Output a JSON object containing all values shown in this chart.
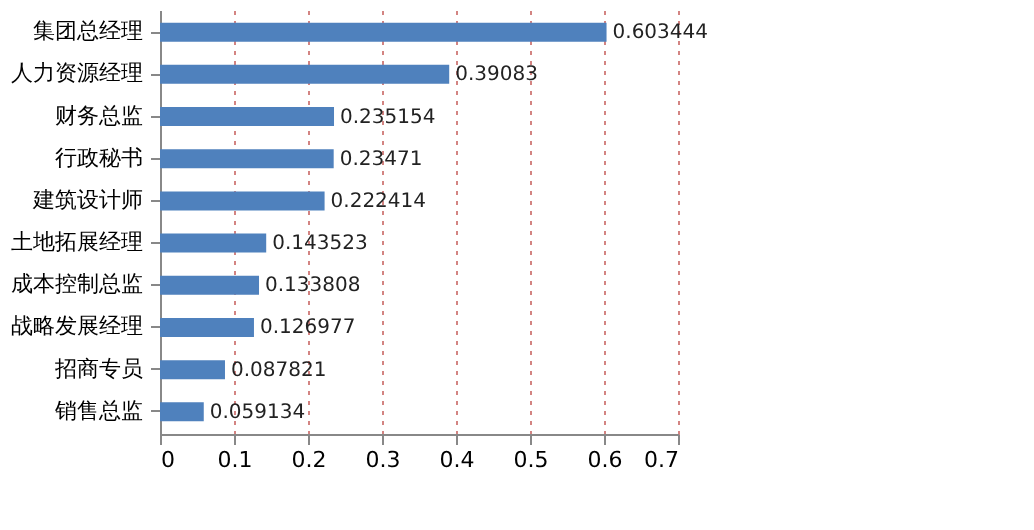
{
  "chart_data": {
    "type": "bar",
    "orientation": "horizontal",
    "categories": [
      "集团总经理",
      "人力资源经理",
      "财务总监",
      "行政秘书",
      "建筑设计师",
      "土地拓展经理",
      "成本控制总监",
      "战略发展经理",
      "招商专员",
      "销售总监"
    ],
    "values": [
      0.603444,
      0.39083,
      0.235154,
      0.23471,
      0.222414,
      0.143523,
      0.133808,
      0.126977,
      0.087821,
      0.059134
    ],
    "color": "#4f81bd",
    "data_labels": true,
    "grid": "x",
    "xlim": [
      0,
      0.7
    ],
    "xticks": [
      0,
      0.1,
      0.2,
      0.3,
      0.4,
      0.5,
      0.6,
      0.7
    ]
  }
}
